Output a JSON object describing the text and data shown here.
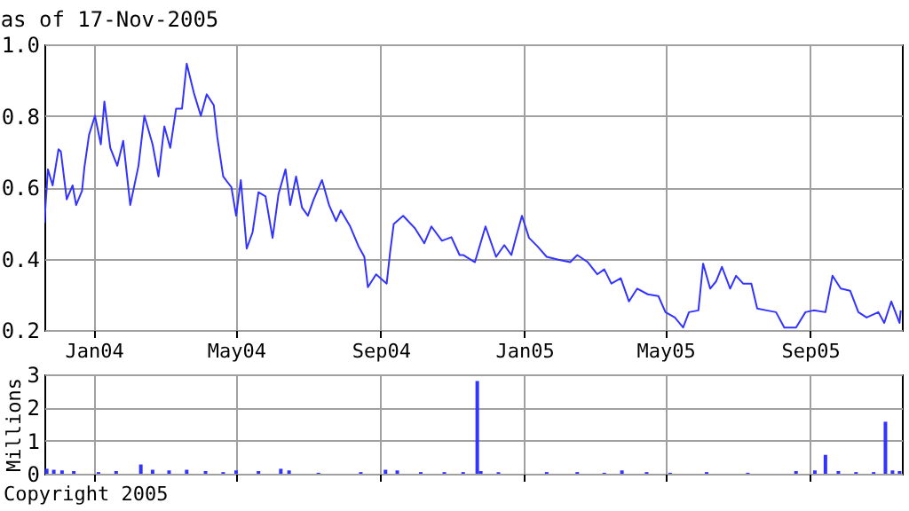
{
  "chart_data": [
    {
      "type": "line",
      "title": "as of 17-Nov-2005",
      "x": [
        "2003-11-20",
        "2003-11-23",
        "2003-11-27",
        "2003-12-02",
        "2003-12-04",
        "2003-12-09",
        "2003-12-14",
        "2003-12-17",
        "2003-12-22",
        "2003-12-24",
        "2003-12-28",
        "2004-01-02",
        "2004-01-07",
        "2004-01-10",
        "2004-01-15",
        "2004-01-21",
        "2004-01-26",
        "2004-02-01",
        "2004-02-08",
        "2004-02-13",
        "2004-02-20",
        "2004-02-25",
        "2004-03-01",
        "2004-03-06",
        "2004-03-11",
        "2004-03-16",
        "2004-03-20",
        "2004-03-26",
        "2004-04-01",
        "2004-04-06",
        "2004-04-12",
        "2004-04-15",
        "2004-04-20",
        "2004-04-27",
        "2004-05-01",
        "2004-05-05",
        "2004-05-10",
        "2004-05-15",
        "2004-05-20",
        "2004-05-26",
        "2004-06-01",
        "2004-06-06",
        "2004-06-12",
        "2004-06-16",
        "2004-06-21",
        "2004-06-26",
        "2004-07-01",
        "2004-07-06",
        "2004-07-13",
        "2004-07-19",
        "2004-07-25",
        "2004-07-29",
        "2004-08-06",
        "2004-08-13",
        "2004-08-18",
        "2004-08-21",
        "2004-08-28",
        "2004-09-06",
        "2004-09-09",
        "2004-09-12",
        "2004-09-20",
        "2004-09-30",
        "2004-10-08",
        "2004-10-14",
        "2004-10-23",
        "2004-10-31",
        "2004-11-07",
        "2004-11-10",
        "2004-11-20",
        "2004-11-29",
        "2004-12-08",
        "2004-12-15",
        "2004-12-21",
        "2004-12-25",
        "2004-12-30",
        "2005-01-05",
        "2005-01-12",
        "2005-01-20",
        "2005-01-30",
        "2005-02-09",
        "2005-02-15",
        "2005-02-24",
        "2005-03-04",
        "2005-03-10",
        "2005-03-16",
        "2005-03-24",
        "2005-03-31",
        "2005-04-07",
        "2005-04-16",
        "2005-04-25",
        "2005-05-01",
        "2005-05-09",
        "2005-05-16",
        "2005-05-21",
        "2005-05-29",
        "2005-06-02",
        "2005-06-08",
        "2005-06-13",
        "2005-06-18",
        "2005-06-25",
        "2005-06-30",
        "2005-07-06",
        "2005-07-13",
        "2005-07-18",
        "2005-07-26",
        "2005-08-03",
        "2005-08-10",
        "2005-08-20",
        "2005-08-28",
        "2005-09-04",
        "2005-09-14",
        "2005-09-20",
        "2005-09-27",
        "2005-10-05",
        "2005-10-12",
        "2005-10-19",
        "2005-10-29",
        "2005-11-03",
        "2005-11-09",
        "2005-11-16",
        "2005-11-17"
      ],
      "series": [
        {
          "color": "#3333ff",
          "values": [
            0.5,
            0.65,
            0.605,
            0.706,
            0.7,
            0.566,
            0.605,
            0.55,
            0.59,
            0.655,
            0.747,
            0.8,
            0.72,
            0.84,
            0.71,
            0.66,
            0.73,
            0.55,
            0.66,
            0.8,
            0.72,
            0.63,
            0.77,
            0.71,
            0.82,
            0.82,
            0.946,
            0.865,
            0.8,
            0.86,
            0.83,
            0.74,
            0.63,
            0.6,
            0.52,
            0.62,
            0.428,
            0.474,
            0.586,
            0.574,
            0.458,
            0.58,
            0.65,
            0.55,
            0.63,
            0.543,
            0.52,
            0.566,
            0.62,
            0.55,
            0.505,
            0.535,
            0.49,
            0.435,
            0.405,
            0.32,
            0.356,
            0.33,
            0.42,
            0.497,
            0.52,
            0.485,
            0.443,
            0.49,
            0.45,
            0.46,
            0.41,
            0.41,
            0.39,
            0.49,
            0.405,
            0.438,
            0.41,
            0.46,
            0.52,
            0.458,
            0.435,
            0.405,
            0.397,
            0.39,
            0.41,
            0.39,
            0.356,
            0.37,
            0.33,
            0.345,
            0.28,
            0.316,
            0.3,
            0.295,
            0.25,
            0.235,
            0.207,
            0.25,
            0.255,
            0.386,
            0.316,
            0.336,
            0.377,
            0.316,
            0.352,
            0.33,
            0.33,
            0.26,
            0.255,
            0.25,
            0.207,
            0.207,
            0.25,
            0.255,
            0.25,
            0.352,
            0.316,
            0.31,
            0.25,
            0.235,
            0.25,
            0.22,
            0.28,
            0.22,
            0.255
          ]
        }
      ],
      "xlim": [
        "2003-11-20",
        "2005-11-18"
      ],
      "xticks": [
        {
          "value": "2004-01-01",
          "label": "Jan04"
        },
        {
          "value": "2004-05-01",
          "label": "May04"
        },
        {
          "value": "2004-09-01",
          "label": "Sep04"
        },
        {
          "value": "2005-01-01",
          "label": "Jan05"
        },
        {
          "value": "2005-05-01",
          "label": "May05"
        },
        {
          "value": "2005-09-01",
          "label": "Sep05"
        }
      ],
      "ylim": [
        0.2,
        1
      ],
      "yticks": [
        0.2,
        0.4,
        0.6,
        0.8,
        {
          "value": 1,
          "label": "1.0"
        }
      ],
      "grid": true
    },
    {
      "type": "bar",
      "ylabel": "Millions",
      "tick_labels": "y",
      "grid": true,
      "x": [
        "2003-11-22",
        "2003-11-28",
        "2003-12-05",
        "2003-12-15",
        "2004-01-05",
        "2004-01-20",
        "2004-02-10",
        "2004-02-20",
        "2004-03-05",
        "2004-03-20",
        "2004-04-05",
        "2004-04-20",
        "2004-05-01",
        "2004-05-20",
        "2004-06-08",
        "2004-06-15",
        "2004-07-10",
        "2004-08-15",
        "2004-09-05",
        "2004-09-15",
        "2004-10-05",
        "2004-10-25",
        "2004-11-10",
        "2004-11-22",
        "2004-11-25",
        "2004-12-10",
        "2005-01-20",
        "2005-02-15",
        "2005-03-10",
        "2005-03-25",
        "2005-04-15",
        "2005-05-05",
        "2005-06-05",
        "2005-07-10",
        "2005-08-20",
        "2005-09-05",
        "2005-09-14",
        "2005-09-25",
        "2005-10-10",
        "2005-10-25",
        "2005-11-04",
        "2005-11-10",
        "2005-11-16"
      ],
      "series": [
        {
          "color": "#3333ff",
          "values": [
            0.15,
            0.12,
            0.1,
            0.08,
            0.05,
            0.08,
            0.28,
            0.12,
            0.1,
            0.12,
            0.08,
            0.05,
            0.1,
            0.08,
            0.15,
            0.1,
            0.03,
            0.05,
            0.12,
            0.1,
            0.05,
            0.05,
            0.05,
            2.8,
            0.08,
            0.05,
            0.05,
            0.05,
            0.03,
            0.1,
            0.05,
            0.03,
            0.05,
            0.03,
            0.08,
            0.1,
            0.57,
            0.08,
            0.05,
            0.05,
            1.57,
            0.1,
            0.08
          ]
        }
      ],
      "xlim": [
        "2003-11-20",
        "2005-11-18"
      ],
      "xticks": [
        "2004-01-01",
        "2004-05-01",
        "2004-09-01",
        "2005-01-01",
        "2005-05-01",
        "2005-09-01"
      ],
      "ylim": [
        0,
        3
      ],
      "yticks": [
        0,
        1,
        2,
        3
      ],
      "annotations": [
        "Copyright 2005"
      ]
    }
  ]
}
